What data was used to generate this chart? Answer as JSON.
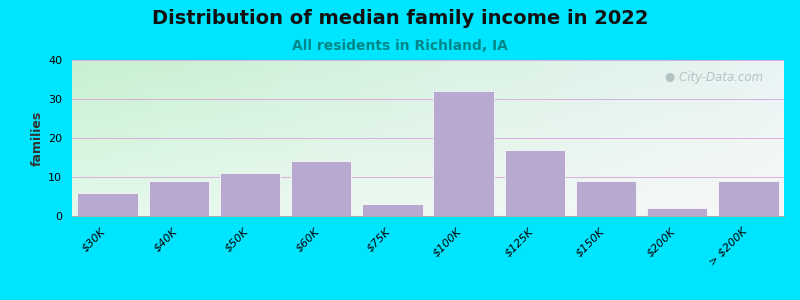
{
  "title": "Distribution of median family income in 2022",
  "subtitle": "All residents in Richland, IA",
  "ylabel": "families",
  "categories": [
    "$30K",
    "$40K",
    "$50K",
    "$60K",
    "$75K",
    "$100K",
    "$125K",
    "$150K",
    "$200K",
    "> $200K"
  ],
  "values": [
    6,
    9,
    11,
    14,
    3,
    32,
    17,
    9,
    2,
    9
  ],
  "bar_color": "#b8a9d0",
  "bar_edgecolor": "#ffffff",
  "ylim": [
    0,
    40
  ],
  "yticks": [
    0,
    10,
    20,
    30,
    40
  ],
  "background_outer": "#00e5ff",
  "bg_topleft": "#c8f0d0",
  "bg_topright": "#e8f0f0",
  "bg_bottomleft": "#e0f8e8",
  "bg_bottomright": "#f8f8f8",
  "grid_color": "#dda0dd",
  "title_fontsize": 14,
  "subtitle_fontsize": 10,
  "subtitle_color": "#008888",
  "watermark_text": "City-Data.com",
  "watermark_color": "#aabbbb"
}
